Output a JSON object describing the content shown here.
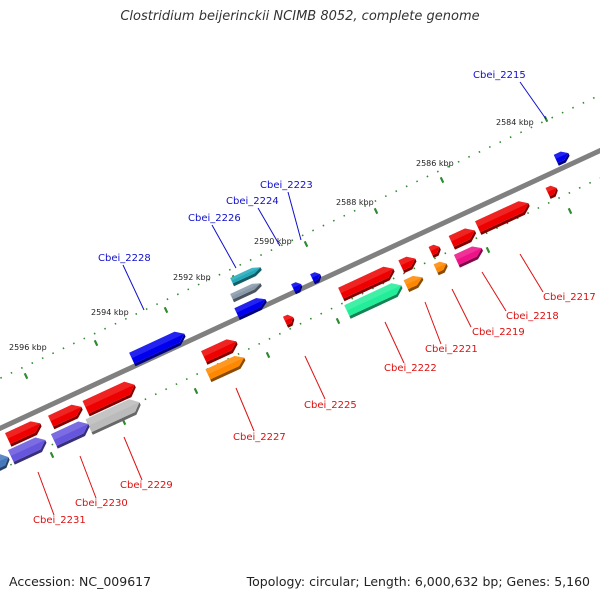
{
  "title": "Clostridium beijerinckii NCIMB 8052, complete genome",
  "footer": {
    "accession": "Accession: NC_009617",
    "summary": "Topology: circular; Length: 6,000,632 bp; Genes: 5,160"
  },
  "colors": {
    "background": "#ffffff",
    "backbone": "#808080",
    "tick_marks": "#2e8b2e",
    "forward_label": "#1010cc",
    "reverse_label": "#dd1111"
  },
  "position_ticks": [
    "2584 kbp",
    "2586 kbp",
    "2588 kbp",
    "2590 kbp",
    "2592 kbp",
    "2594 kbp",
    "2596 kbp"
  ],
  "forward_genes": [
    {
      "label": "Cbei_2215",
      "color": "#0000ee"
    },
    {
      "label": "Cbei_2223",
      "color": "#0000ee"
    },
    {
      "label": "Cbei_2224",
      "color": "#0000ee"
    },
    {
      "label": "Cbei_2226",
      "color": "#0000ee"
    },
    {
      "label": "Cbei_2228",
      "color": "#0000ee"
    }
  ],
  "reverse_genes": [
    {
      "label": "Cbei_2217",
      "color": "#ee0000"
    },
    {
      "label": "Cbei_2218",
      "color": "#ee1188"
    },
    {
      "label": "Cbei_2219",
      "color": "#ff8800"
    },
    {
      "label": "Cbei_2221",
      "color": "#ee0000"
    },
    {
      "label": "Cbei_2222",
      "color": "#22ee99"
    },
    {
      "label": "Cbei_2225",
      "color": "#ee0000"
    },
    {
      "label": "Cbei_2227",
      "color": "#ff8800"
    },
    {
      "label": "Cbei_2229",
      "color": "#bbbbbb"
    },
    {
      "label": "Cbei_2230",
      "color": "#6655dd"
    },
    {
      "label": "Cbei_2231",
      "color": "#6655dd"
    }
  ]
}
